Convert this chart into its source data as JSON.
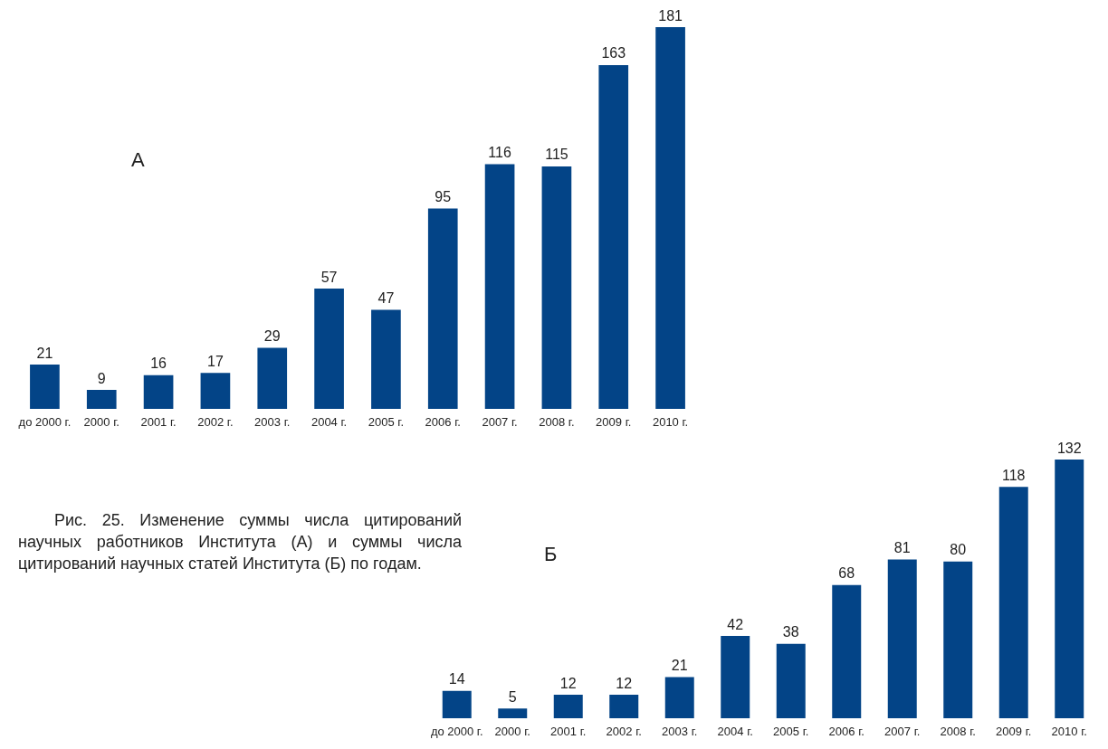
{
  "chart_data": [
    {
      "type": "bar",
      "title": "А",
      "categories": [
        "до 2000 г.",
        "2000 г.",
        "2001 г.",
        "2002 г.",
        "2003 г.",
        "2004 г.",
        "2005 г.",
        "2006 г.",
        "2007 г.",
        "2008 г.",
        "2009 г.",
        "2010 г."
      ],
      "values": [
        21,
        9,
        16,
        17,
        29,
        57,
        47,
        95,
        116,
        115,
        163,
        181
      ],
      "color": "#034487",
      "data_labels": true
    },
    {
      "type": "bar",
      "title": "Б",
      "categories": [
        "до 2000 г.",
        "2000 г.",
        "2001 г.",
        "2002 г.",
        "2003 г.",
        "2004 г.",
        "2005 г.",
        "2006 г.",
        "2007 г.",
        "2008 г.",
        "2009 г.",
        "2010 г."
      ],
      "values": [
        14,
        5,
        12,
        12,
        21,
        42,
        38,
        68,
        81,
        80,
        118,
        132
      ],
      "color": "#034487",
      "data_labels": true,
      "annotations": [
        "Рис. 25. Изменение суммы числа цитирований научных работников Института (А) и суммы числа цитирований научных статей Института (Б) по годам."
      ]
    }
  ]
}
